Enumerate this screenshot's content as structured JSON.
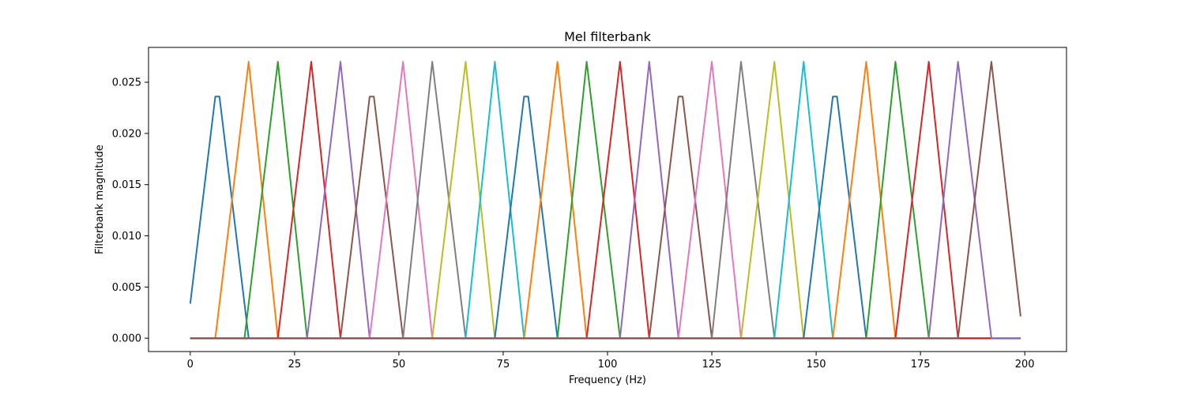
{
  "chart_data": {
    "type": "line",
    "title": "Mel filterbank",
    "xlabel": "Frequency (Hz)",
    "ylabel": "Filterbank magnitude",
    "xlim": [
      -10,
      210
    ],
    "ylim": [
      -0.0013,
      0.0284
    ],
    "xticks": [
      0,
      25,
      50,
      75,
      100,
      125,
      150,
      175,
      200
    ],
    "xtick_labels": [
      "0",
      "25",
      "50",
      "75",
      "100",
      "125",
      "150",
      "175",
      "200"
    ],
    "yticks": [
      0.0,
      0.005,
      0.01,
      0.015,
      0.02,
      0.025
    ],
    "ytick_labels": [
      "0.000",
      "0.005",
      "0.010",
      "0.015",
      "0.020",
      "0.025"
    ],
    "grid": false,
    "legend": false,
    "x_range": [
      0,
      199
    ],
    "colors": [
      "#1f77b4",
      "#ff7f0e",
      "#2ca02c",
      "#d62728",
      "#9467bd",
      "#8c564b",
      "#e377c2",
      "#7f7f7f",
      "#bcbd22",
      "#17becf"
    ],
    "filters": [
      {
        "left": -1,
        "center": 6,
        "center_end": 7,
        "right": 14,
        "peak": 0.0236
      },
      {
        "left": 6,
        "center": 14,
        "right": 21,
        "peak": 0.027
      },
      {
        "left": 13,
        "center": 21,
        "right": 28,
        "peak": 0.027
      },
      {
        "left": 21,
        "center": 29,
        "right": 36,
        "peak": 0.027
      },
      {
        "left": 28,
        "center": 36,
        "right": 43,
        "peak": 0.027
      },
      {
        "left": 36,
        "center": 43,
        "center_end": 44,
        "right": 51,
        "peak": 0.0236
      },
      {
        "left": 43,
        "center": 51,
        "right": 58,
        "peak": 0.027
      },
      {
        "left": 51,
        "center": 58,
        "right": 66,
        "peak": 0.027
      },
      {
        "left": 58,
        "center": 66,
        "right": 73,
        "peak": 0.027
      },
      {
        "left": 66,
        "center": 73,
        "right": 80,
        "peak": 0.027
      },
      {
        "left": 73,
        "center": 80,
        "center_end": 81,
        "right": 88,
        "peak": 0.0236
      },
      {
        "left": 80,
        "center": 88,
        "right": 95,
        "peak": 0.027
      },
      {
        "left": 88,
        "center": 95,
        "right": 103,
        "peak": 0.027
      },
      {
        "left": 95,
        "center": 103,
        "right": 110,
        "peak": 0.027
      },
      {
        "left": 103,
        "center": 110,
        "right": 117,
        "peak": 0.027
      },
      {
        "left": 110,
        "center": 117,
        "center_end": 118,
        "right": 125,
        "peak": 0.0236
      },
      {
        "left": 117,
        "center": 125,
        "right": 132,
        "peak": 0.027
      },
      {
        "left": 125,
        "center": 132,
        "right": 140,
        "peak": 0.027
      },
      {
        "left": 132,
        "center": 140,
        "right": 147,
        "peak": 0.027
      },
      {
        "left": 140,
        "center": 147,
        "right": 154,
        "peak": 0.027
      },
      {
        "left": 147,
        "center": 154,
        "center_end": 155,
        "right": 162,
        "peak": 0.0236
      },
      {
        "left": 154,
        "center": 162,
        "right": 169,
        "peak": 0.027
      },
      {
        "left": 162,
        "center": 169,
        "right": 177,
        "peak": 0.027
      },
      {
        "left": 169,
        "center": 177,
        "right": 184,
        "peak": 0.027
      },
      {
        "left": 177,
        "center": 184,
        "right": 192,
        "peak": 0.027
      },
      {
        "left": 184,
        "center": 192,
        "right": 199.6,
        "peak": 0.027
      }
    ]
  }
}
